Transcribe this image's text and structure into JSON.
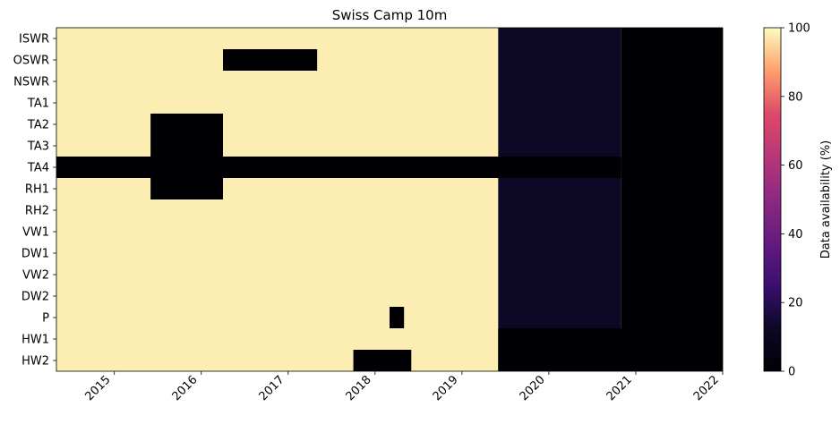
{
  "chart_data": {
    "type": "heatmap",
    "title": "Swiss Camp 10m",
    "xlabel": "",
    "ylabel": "",
    "rows": [
      "ISWR",
      "OSWR",
      "NSWR",
      "TA1",
      "TA2",
      "TA3",
      "TA4",
      "RH1",
      "RH2",
      "VW1",
      "DW1",
      "VW2",
      "DW2",
      "P",
      "HW1",
      "HW2"
    ],
    "x_ticks": [
      "2015",
      "2016",
      "2017",
      "2018",
      "2019",
      "2020",
      "2021",
      "2022"
    ],
    "x_range": [
      "2014-05",
      "2022-01"
    ],
    "colorbar": {
      "label": "Data availability (%)",
      "ticks": [
        "0",
        "20",
        "40",
        "60",
        "80",
        "100"
      ],
      "range": [
        0,
        100
      ],
      "colormap": "magma"
    },
    "bands": [
      {
        "period": "2014-05 to 2019-06",
        "value_pct": 98
      },
      {
        "period": "2019-06 to 2020-11",
        "value_pct": 12
      },
      {
        "period": "2020-11 to 2022-01",
        "value_pct": 0
      }
    ],
    "gaps_0pct": [
      {
        "row": "OSWR",
        "from": "2016-04",
        "to": "2017-05"
      },
      {
        "row": "TA2",
        "from": "2015-06",
        "to": "2016-04"
      },
      {
        "row": "TA3",
        "from": "2015-06",
        "to": "2016-04"
      },
      {
        "row": "TA4",
        "from": "2014-05",
        "to": "2020-11"
      },
      {
        "row": "RH1",
        "from": "2015-06",
        "to": "2016-04"
      },
      {
        "row": "P",
        "from": "2018-03",
        "to": "2018-05"
      },
      {
        "row": "HW1",
        "from": "2019-06",
        "to": "2022-01"
      },
      {
        "row": "HW2",
        "from": "2017-10",
        "to": "2018-06"
      },
      {
        "row": "HW2",
        "from": "2019-06",
        "to": "2022-01"
      }
    ]
  }
}
